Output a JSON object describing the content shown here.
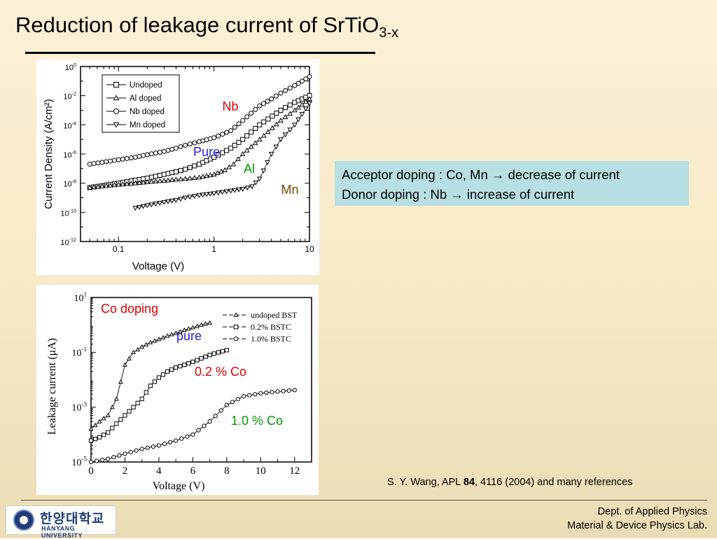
{
  "slide": {
    "title": "Reduction of leakage current of SrTiO",
    "title_subscript": "3-x",
    "callout_line1": "Acceptor doping : Co, Mn → decrease of current",
    "callout_line2": "Donor doping : Nb → increase of current",
    "reference_pre": "S. Y. Wang, APL ",
    "reference_bold": "84",
    "reference_post": ", 4116 (2004) and many references",
    "footer_dept": "Dept. of Applied Physics",
    "footer_lab": "Material & Device Physics Lab.",
    "logo_korean": "한양대학교",
    "logo_english": "HANYANG UNIVERSITY"
  },
  "colors": {
    "nb_label": "#e00000",
    "pure_label": "#2020e0",
    "al_label": "#009900",
    "mn_label": "#7a4a00",
    "callout_bg": "#b8dfe3"
  },
  "chart_data": [
    {
      "type": "scatter",
      "scale": "log-log",
      "xlabel": "Voltage (V)",
      "ylabel": "Current Density (A/cm²)",
      "xlim": [
        0.04,
        10
      ],
      "ylim": [
        1e-12,
        1
      ],
      "xticks": [
        {
          "v": 0.1,
          "label": "0.1"
        },
        {
          "v": 1,
          "label": "1"
        },
        {
          "v": 10,
          "label": "10"
        }
      ],
      "yticks": [
        {
          "e": 0,
          "label": "10",
          "sup": "0"
        },
        {
          "e": -2,
          "label": "10",
          "sup": "-2"
        },
        {
          "e": -4,
          "label": "10",
          "sup": "-4"
        },
        {
          "e": -6,
          "label": "10",
          "sup": "-6"
        },
        {
          "e": -8,
          "label": "10",
          "sup": "-8"
        },
        {
          "e": -10,
          "label": "10",
          "sup": "-10"
        },
        {
          "e": -12,
          "label": "10",
          "sup": "-12"
        }
      ],
      "legend": [
        "Undoped",
        "Al doped",
        "Nb doped",
        "Mn doped"
      ],
      "legend_position": "top-left",
      "series": [
        {
          "name": "Undoped",
          "marker": "square",
          "x": [
            0.05,
            0.1,
            0.15,
            0.2,
            0.3,
            0.4,
            0.5,
            0.7,
            1.0,
            1.5,
            2.0,
            3.0,
            5.0,
            7.0,
            10.0
          ],
          "y": [
            5e-09,
            1e-08,
            1.6e-08,
            2.2e-08,
            4e-08,
            6e-08,
            9e-08,
            2e-07,
            6e-07,
            2.5e-06,
            1e-05,
            0.0001,
            0.001,
            0.0035,
            0.01
          ]
        },
        {
          "name": "Al doped",
          "marker": "triangle-up",
          "x": [
            0.05,
            0.1,
            0.15,
            0.2,
            0.3,
            0.4,
            0.5,
            0.7,
            1.0,
            1.3,
            1.6,
            2.0,
            3.0,
            5.0,
            7.0,
            10.0
          ],
          "y": [
            5e-09,
            8e-09,
            1e-08,
            1.2e-08,
            1.5e-08,
            1.8e-08,
            2e-08,
            2.5e-08,
            4e-08,
            8e-08,
            2e-07,
            1e-06,
            1e-05,
            0.0002,
            0.001,
            0.006
          ]
        },
        {
          "name": "Nb doped",
          "marker": "circle",
          "x": [
            0.05,
            0.1,
            0.15,
            0.2,
            0.3,
            0.4,
            0.5,
            0.7,
            1.0,
            1.5,
            2.0,
            3.0,
            4.0,
            5.0,
            7.0,
            10.0
          ],
          "y": [
            2e-07,
            4e-07,
            6e-07,
            9e-07,
            1.5e-06,
            2.5e-06,
            4e-06,
            7e-06,
            1.3e-05,
            4e-05,
            0.0002,
            0.002,
            0.006,
            0.015,
            0.05,
            0.2
          ]
        },
        {
          "name": "Mn doped",
          "marker": "triangle-down",
          "x": [
            0.15,
            0.2,
            0.3,
            0.4,
            0.5,
            0.7,
            1.0,
            1.5,
            2.0,
            2.5,
            3.0,
            4.0,
            5.0,
            7.0,
            10.0
          ],
          "y": [
            2e-10,
            3e-10,
            5e-10,
            7e-10,
            1e-09,
            1.5e-09,
            2e-09,
            3e-09,
            4e-09,
            6e-09,
            2e-08,
            1e-06,
            1e-05,
            0.0001,
            0.003
          ]
        }
      ],
      "annotations": [
        "Nb",
        "Pure",
        "Al",
        "Mn"
      ]
    },
    {
      "type": "line",
      "scale": "semilog-y",
      "xlabel": "Voltage (V)",
      "ylabel": "Leakage current (μA)",
      "xlim": [
        0,
        13
      ],
      "ylim": [
        1e-05,
        10
      ],
      "xticks": [
        0,
        2,
        4,
        6,
        8,
        10,
        12
      ],
      "yticks": [
        {
          "e": 1,
          "label": "10",
          "sup": "1"
        },
        {
          "e": -1,
          "label": "10",
          "sup": "-1"
        },
        {
          "e": -3,
          "label": "10",
          "sup": "-3"
        },
        {
          "e": -5,
          "label": "10",
          "sup": "-5"
        }
      ],
      "legend": [
        "undoped BST",
        "0.2% BSTC",
        "1.0% BSTC"
      ],
      "legend_position": "top-right",
      "series": [
        {
          "name": "undoped BST",
          "marker": "triangle-up",
          "x": [
            0,
            0.5,
            1.0,
            1.5,
            2.0,
            2.5,
            3.0,
            3.5,
            4.0,
            4.5,
            5.0,
            5.5,
            6.0,
            6.5,
            7.0
          ],
          "y": [
            0.00016,
            0.0003,
            0.0005,
            0.002,
            0.035,
            0.1,
            0.16,
            0.23,
            0.3,
            0.4,
            0.5,
            0.65,
            0.8,
            1.0,
            1.2
          ]
        },
        {
          "name": "0.2% BSTC",
          "marker": "square",
          "x": [
            0,
            0.5,
            1.0,
            1.5,
            2.0,
            2.5,
            3.0,
            3.5,
            4.0,
            4.5,
            5.0,
            5.5,
            6.0,
            6.5,
            7.0,
            7.5,
            8.0
          ],
          "y": [
            6e-05,
            8e-05,
            0.00012,
            0.00025,
            0.0005,
            0.001,
            0.002,
            0.006,
            0.012,
            0.02,
            0.028,
            0.035,
            0.045,
            0.06,
            0.08,
            0.1,
            0.12
          ]
        },
        {
          "name": "1.0% BSTC",
          "marker": "circle",
          "x": [
            0,
            1,
            2,
            3,
            4,
            5,
            6,
            7,
            8,
            9,
            10,
            11,
            12
          ],
          "y": [
            1e-05,
            1.3e-05,
            2e-05,
            3e-05,
            4e-05,
            6e-05,
            0.0001,
            0.0003,
            0.0012,
            0.0025,
            0.0032,
            0.0037,
            0.0042
          ]
        }
      ],
      "annotations": [
        "Co doping",
        "pure",
        "0.2 % Co",
        "1.0 % Co"
      ]
    }
  ]
}
